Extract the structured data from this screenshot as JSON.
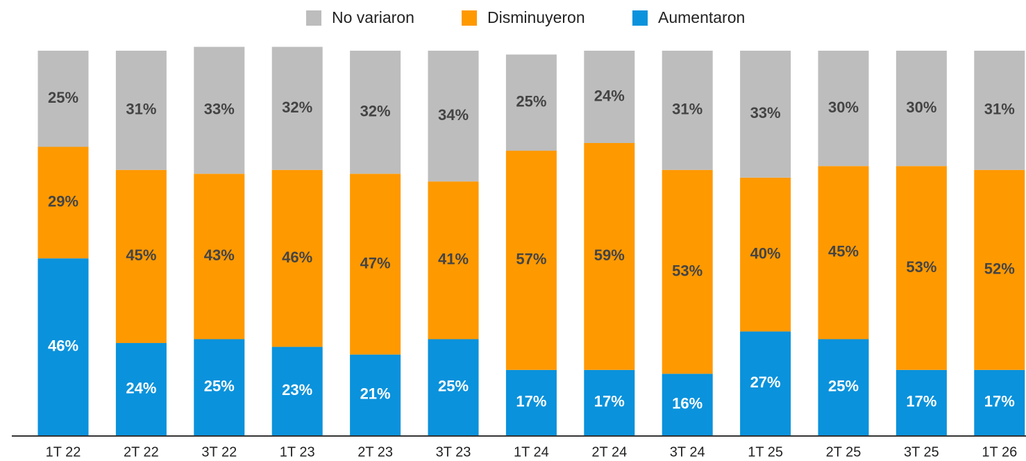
{
  "chart_data": {
    "type": "stacked_bar",
    "categories": [
      "1T 22",
      "2T 22",
      "3T 22",
      "1T 23",
      "2T 23",
      "3T 23",
      "1T 24",
      "2T 24",
      "3T 24",
      "1T 25",
      "2T 25",
      "3T 25",
      "1T 26"
    ],
    "series": [
      {
        "name": "Aumentaron",
        "color": "#0a92dc",
        "label_color": "#ffffff",
        "values": [
          46,
          24,
          25,
          23,
          21,
          25,
          17,
          17,
          16,
          27,
          25,
          17,
          17
        ],
        "value_labels": [
          "46%",
          "24%",
          "25%",
          "23%",
          "21%",
          "25%",
          "17%",
          "17%",
          "16%",
          "27%",
          "25%",
          "17%",
          "17%"
        ]
      },
      {
        "name": "Disminuyeron",
        "color": "#ff9900",
        "label_color": "#444444",
        "values": [
          29,
          45,
          43,
          46,
          47,
          41,
          57,
          59,
          53,
          40,
          45,
          53,
          52
        ],
        "value_labels": [
          "29%",
          "45%",
          "43%",
          "46%",
          "47%",
          "41%",
          "57%",
          "59%",
          "53%",
          "40%",
          "45%",
          "53%",
          "52%"
        ]
      },
      {
        "name": "No variaron",
        "color": "#bdbdbd",
        "label_color": "#444444",
        "values": [
          25,
          31,
          33,
          32,
          32,
          34,
          25,
          24,
          31,
          33,
          30,
          30,
          31
        ],
        "value_labels": [
          "25%",
          "31%",
          "33%",
          "32%",
          "32%",
          "34%",
          "25%",
          "24%",
          "31%",
          "33%",
          "30%",
          "30%",
          "31%"
        ]
      }
    ],
    "ylim": [
      0,
      100
    ],
    "legend": "top"
  }
}
